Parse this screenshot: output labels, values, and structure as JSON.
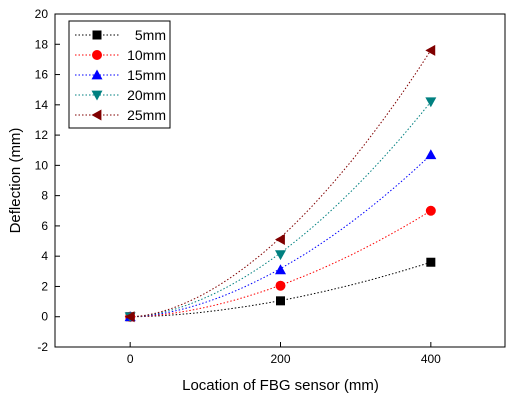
{
  "chart_data": {
    "type": "scatter",
    "title": "",
    "xlabel": "Location of FBG sensor (mm)",
    "ylabel": "Deflection (mm)",
    "xlim": [
      -100,
      500
    ],
    "ylim": [
      -2,
      20
    ],
    "xticks": [
      0,
      200,
      400
    ],
    "yticks": [
      -2,
      0,
      2,
      4,
      6,
      8,
      10,
      12,
      14,
      16,
      18,
      20
    ],
    "grid": false,
    "legend_position": "top-left",
    "x": [
      0,
      200,
      400
    ],
    "series": [
      {
        "name": "5mm",
        "values": [
          0,
          1.05,
          3.6
        ],
        "color": "#000000",
        "marker": "square"
      },
      {
        "name": "10mm",
        "values": [
          0,
          2.05,
          7.0
        ],
        "color": "#ff0000",
        "marker": "circle"
      },
      {
        "name": "15mm",
        "values": [
          0,
          3.1,
          10.7
        ],
        "color": "#0000ff",
        "marker": "triangle-up"
      },
      {
        "name": "20mm",
        "values": [
          0,
          4.1,
          14.2
        ],
        "color": "#008080",
        "marker": "triangle-down"
      },
      {
        "name": "25mm",
        "values": [
          0,
          5.1,
          17.6
        ],
        "color": "#800000",
        "marker": "triangle-left"
      }
    ]
  }
}
